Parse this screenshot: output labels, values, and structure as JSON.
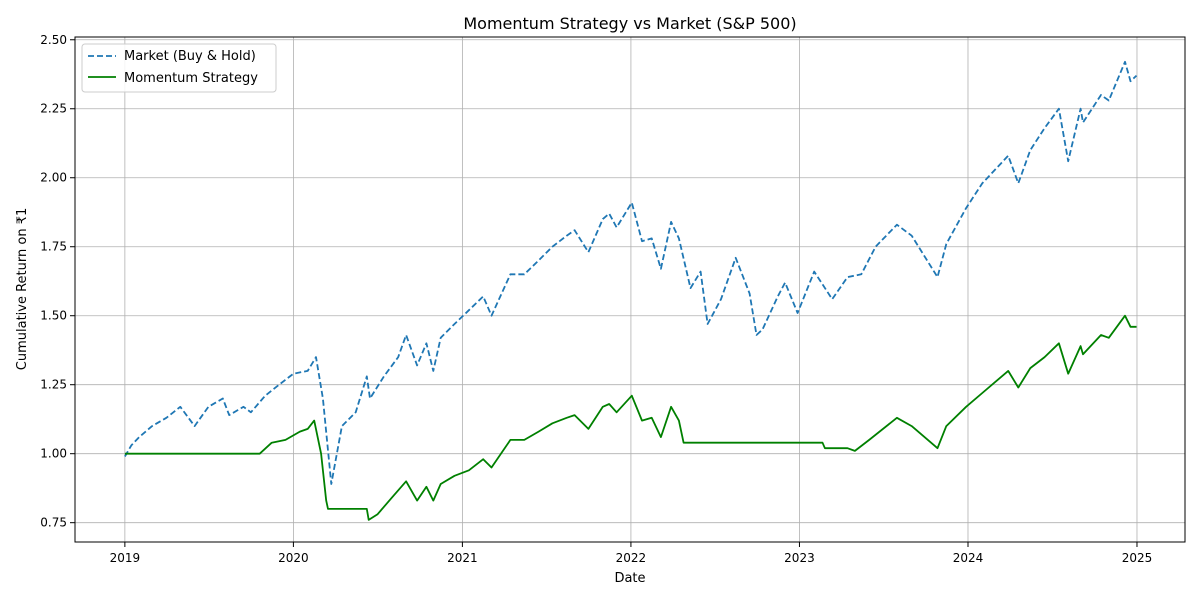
{
  "chart_data": {
    "type": "line",
    "title": "Momentum Strategy vs Market (S&P 500)",
    "xlabel": "Date",
    "ylabel": "Cumulative Return on ₹1",
    "xlim": [
      "2018-09-15",
      "2025-04-15"
    ],
    "ylim": [
      0.68,
      2.51
    ],
    "x_ticks": [
      "2019",
      "2020",
      "2021",
      "2022",
      "2023",
      "2024",
      "2025"
    ],
    "y_ticks": [
      "0.75",
      "1.00",
      "1.25",
      "1.50",
      "1.75",
      "2.00",
      "2.25",
      "2.50"
    ],
    "grid": true,
    "legend_position": "top-left",
    "series": [
      {
        "name": "Market (Buy & Hold)",
        "color": "#1f77b4",
        "style": "dashed",
        "points": [
          [
            "2019-01-01",
            0.99
          ],
          [
            "2019-01-15",
            1.03
          ],
          [
            "2019-02-01",
            1.06
          ],
          [
            "2019-03-01",
            1.1
          ],
          [
            "2019-04-01",
            1.13
          ],
          [
            "2019-05-01",
            1.17
          ],
          [
            "2019-06-01",
            1.1
          ],
          [
            "2019-07-01",
            1.17
          ],
          [
            "2019-08-01",
            1.2
          ],
          [
            "2019-08-15",
            1.14
          ],
          [
            "2019-09-15",
            1.17
          ],
          [
            "2019-10-01",
            1.15
          ],
          [
            "2019-11-01",
            1.21
          ],
          [
            "2019-12-01",
            1.25
          ],
          [
            "2020-01-01",
            1.29
          ],
          [
            "2020-02-01",
            1.3
          ],
          [
            "2020-02-19",
            1.35
          ],
          [
            "2020-03-05",
            1.2
          ],
          [
            "2020-03-23",
            0.89
          ],
          [
            "2020-04-15",
            1.1
          ],
          [
            "2020-05-15",
            1.15
          ],
          [
            "2020-06-08",
            1.28
          ],
          [
            "2020-06-15",
            1.2
          ],
          [
            "2020-07-15",
            1.28
          ],
          [
            "2020-08-15",
            1.35
          ],
          [
            "2020-09-01",
            1.43
          ],
          [
            "2020-09-25",
            1.32
          ],
          [
            "2020-10-15",
            1.4
          ],
          [
            "2020-10-30",
            1.3
          ],
          [
            "2020-11-15",
            1.42
          ],
          [
            "2020-12-15",
            1.47
          ],
          [
            "2021-01-15",
            1.52
          ],
          [
            "2021-02-15",
            1.57
          ],
          [
            "2021-03-05",
            1.5
          ],
          [
            "2021-04-15",
            1.65
          ],
          [
            "2021-05-15",
            1.65
          ],
          [
            "2021-06-15",
            1.7
          ],
          [
            "2021-07-15",
            1.75
          ],
          [
            "2021-08-15",
            1.79
          ],
          [
            "2021-09-01",
            1.81
          ],
          [
            "2021-10-01",
            1.73
          ],
          [
            "2021-11-01",
            1.85
          ],
          [
            "2021-11-15",
            1.87
          ],
          [
            "2021-12-01",
            1.82
          ],
          [
            "2022-01-03",
            1.91
          ],
          [
            "2022-01-25",
            1.77
          ],
          [
            "2022-02-15",
            1.78
          ],
          [
            "2022-03-07",
            1.67
          ],
          [
            "2022-03-29",
            1.84
          ],
          [
            "2022-04-15",
            1.78
          ],
          [
            "2022-05-10",
            1.6
          ],
          [
            "2022-06-01",
            1.66
          ],
          [
            "2022-06-16",
            1.47
          ],
          [
            "2022-07-15",
            1.56
          ],
          [
            "2022-08-16",
            1.71
          ],
          [
            "2022-09-15",
            1.58
          ],
          [
            "2022-09-30",
            1.43
          ],
          [
            "2022-10-13",
            1.45
          ],
          [
            "2022-11-15",
            1.57
          ],
          [
            "2022-12-01",
            1.62
          ],
          [
            "2022-12-28",
            1.51
          ],
          [
            "2023-02-02",
            1.66
          ],
          [
            "2023-03-13",
            1.56
          ],
          [
            "2023-04-15",
            1.64
          ],
          [
            "2023-05-15",
            1.65
          ],
          [
            "2023-06-15",
            1.75
          ],
          [
            "2023-07-31",
            1.83
          ],
          [
            "2023-09-01",
            1.79
          ],
          [
            "2023-10-27",
            1.64
          ],
          [
            "2023-11-15",
            1.76
          ],
          [
            "2023-12-28",
            1.89
          ],
          [
            "2024-02-01",
            1.98
          ],
          [
            "2024-03-28",
            2.08
          ],
          [
            "2024-04-19",
            1.98
          ],
          [
            "2024-05-15",
            2.1
          ],
          [
            "2024-06-15",
            2.18
          ],
          [
            "2024-07-16",
            2.25
          ],
          [
            "2024-08-05",
            2.06
          ],
          [
            "2024-09-01",
            2.25
          ],
          [
            "2024-09-06",
            2.2
          ],
          [
            "2024-10-15",
            2.3
          ],
          [
            "2024-11-01",
            2.28
          ],
          [
            "2024-12-06",
            2.42
          ],
          [
            "2024-12-18",
            2.35
          ],
          [
            "2024-12-31",
            2.37
          ]
        ]
      },
      {
        "name": "Momentum Strategy",
        "color": "#008000",
        "style": "solid",
        "points": [
          [
            "2019-01-01",
            1.0
          ],
          [
            "2019-10-20",
            1.0
          ],
          [
            "2019-11-15",
            1.04
          ],
          [
            "2019-12-15",
            1.05
          ],
          [
            "2020-01-15",
            1.08
          ],
          [
            "2020-02-01",
            1.09
          ],
          [
            "2020-02-15",
            1.12
          ],
          [
            "2020-03-01",
            1.0
          ],
          [
            "2020-03-12",
            0.83
          ],
          [
            "2020-03-16",
            0.8
          ],
          [
            "2020-06-08",
            0.8
          ],
          [
            "2020-06-12",
            0.76
          ],
          [
            "2020-07-01",
            0.78
          ],
          [
            "2020-08-01",
            0.84
          ],
          [
            "2020-09-01",
            0.9
          ],
          [
            "2020-09-25",
            0.83
          ],
          [
            "2020-10-15",
            0.88
          ],
          [
            "2020-10-30",
            0.83
          ],
          [
            "2020-11-15",
            0.89
          ],
          [
            "2020-12-15",
            0.92
          ],
          [
            "2021-01-15",
            0.94
          ],
          [
            "2021-02-15",
            0.98
          ],
          [
            "2021-03-05",
            0.95
          ],
          [
            "2021-04-15",
            1.05
          ],
          [
            "2021-05-15",
            1.05
          ],
          [
            "2021-06-15",
            1.08
          ],
          [
            "2021-07-15",
            1.11
          ],
          [
            "2021-08-15",
            1.13
          ],
          [
            "2021-09-01",
            1.14
          ],
          [
            "2021-10-01",
            1.09
          ],
          [
            "2021-11-01",
            1.17
          ],
          [
            "2021-11-15",
            1.18
          ],
          [
            "2021-12-01",
            1.15
          ],
          [
            "2022-01-03",
            1.21
          ],
          [
            "2022-01-25",
            1.12
          ],
          [
            "2022-02-15",
            1.13
          ],
          [
            "2022-03-07",
            1.06
          ],
          [
            "2022-03-29",
            1.17
          ],
          [
            "2022-04-15",
            1.12
          ],
          [
            "2022-04-25",
            1.04
          ],
          [
            "2023-02-20",
            1.04
          ],
          [
            "2023-02-25",
            1.02
          ],
          [
            "2023-04-15",
            1.02
          ],
          [
            "2023-05-01",
            1.01
          ],
          [
            "2023-06-01",
            1.05
          ],
          [
            "2023-07-31",
            1.13
          ],
          [
            "2023-09-01",
            1.1
          ],
          [
            "2023-10-27",
            1.02
          ],
          [
            "2023-11-15",
            1.1
          ],
          [
            "2023-12-28",
            1.17
          ],
          [
            "2024-02-01",
            1.22
          ],
          [
            "2024-03-28",
            1.3
          ],
          [
            "2024-04-19",
            1.24
          ],
          [
            "2024-05-15",
            1.31
          ],
          [
            "2024-06-15",
            1.35
          ],
          [
            "2024-07-16",
            1.4
          ],
          [
            "2024-08-05",
            1.29
          ],
          [
            "2024-09-01",
            1.39
          ],
          [
            "2024-09-06",
            1.36
          ],
          [
            "2024-10-15",
            1.43
          ],
          [
            "2024-11-01",
            1.42
          ],
          [
            "2024-12-06",
            1.5
          ],
          [
            "2024-12-18",
            1.46
          ],
          [
            "2024-12-31",
            1.46
          ]
        ]
      }
    ]
  }
}
